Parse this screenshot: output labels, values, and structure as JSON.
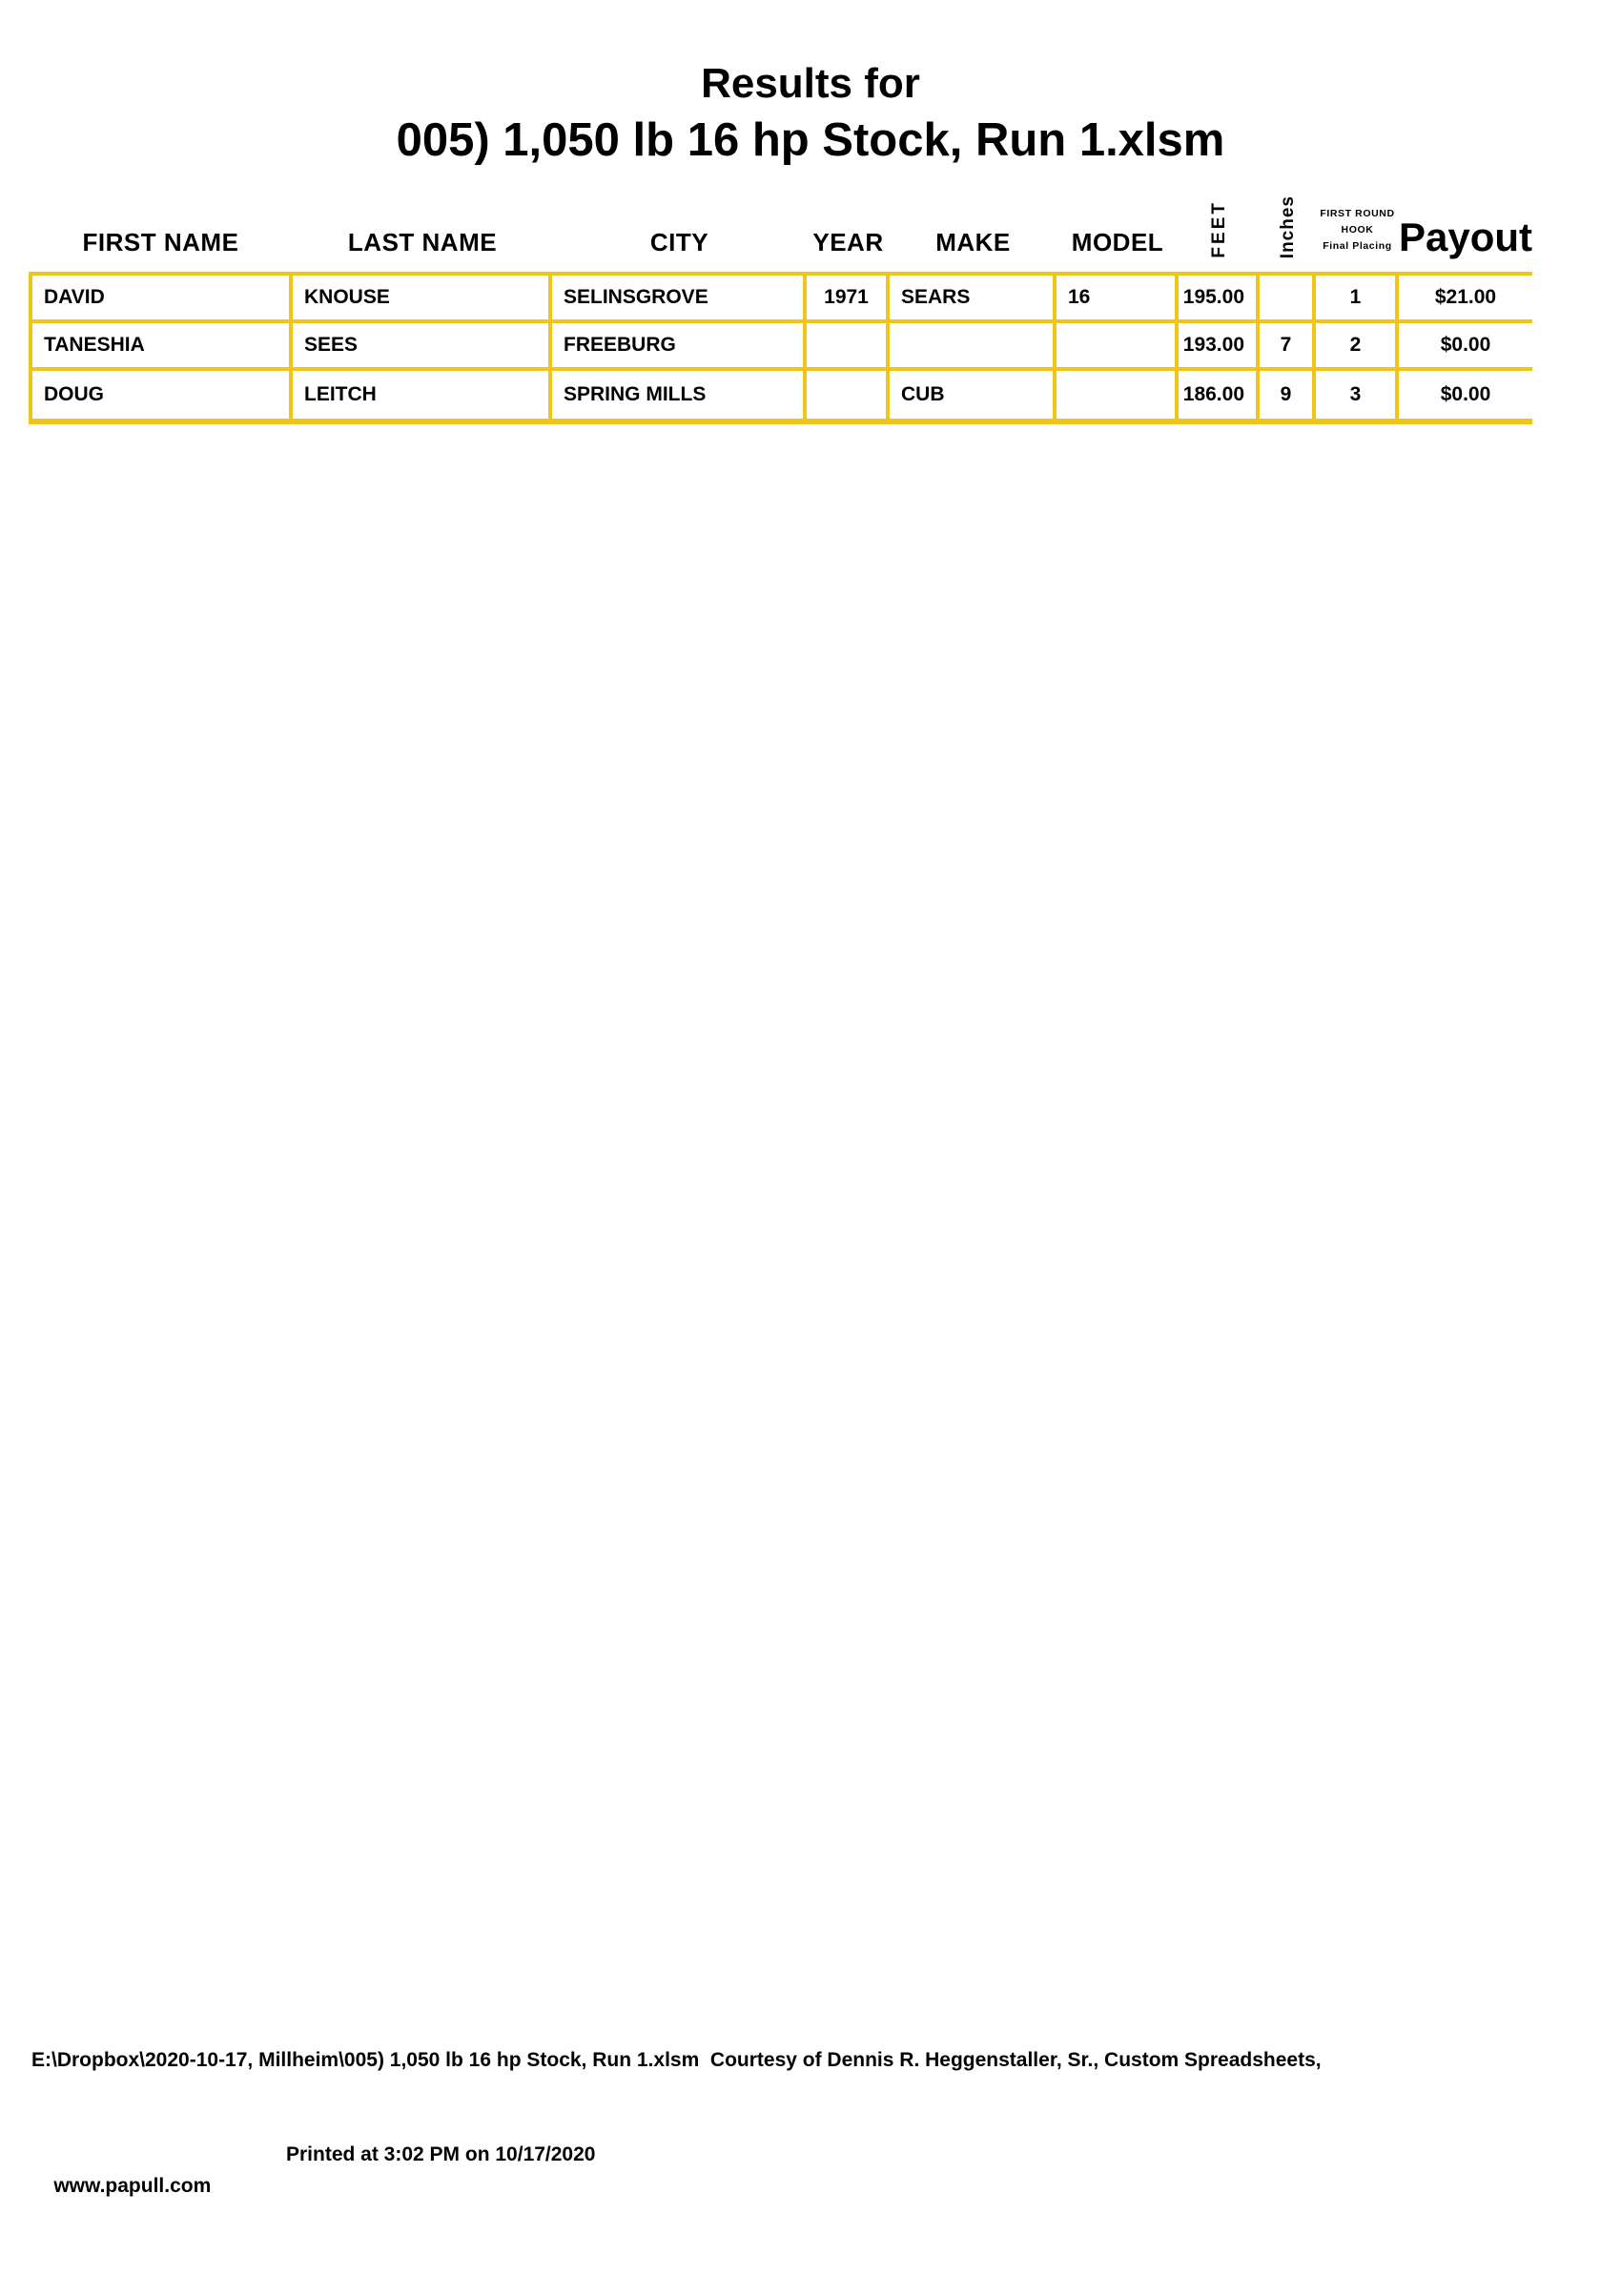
{
  "title": {
    "line1": "Results for",
    "line2": "005) 1,050 lb 16 hp Stock, Run 1.xlsm"
  },
  "colors": {
    "border_gold": "#F0C419",
    "text": "#000000",
    "background": "#FFFFFF"
  },
  "table": {
    "columns": [
      {
        "id": "first_name",
        "label": "FIRST NAME",
        "align": "left"
      },
      {
        "id": "last_name",
        "label": "LAST NAME",
        "align": "left"
      },
      {
        "id": "city",
        "label": "CITY",
        "align": "left"
      },
      {
        "id": "year",
        "label": "YEAR",
        "align": "center"
      },
      {
        "id": "make",
        "label": "MAKE",
        "align": "left"
      },
      {
        "id": "model",
        "label": "MODEL",
        "align": "left"
      },
      {
        "id": "feet",
        "label": "FEET",
        "align": "right",
        "header_style": "rotated"
      },
      {
        "id": "inches",
        "label": "Inches",
        "align": "center",
        "header_style": "rotated"
      },
      {
        "id": "final_placing",
        "label_lines": [
          "FIRST ROUND",
          "HOOK",
          "Final Placing"
        ],
        "align": "center",
        "header_style": "stacked"
      },
      {
        "id": "payout",
        "label": "Payout",
        "align": "center",
        "header_style": "large"
      }
    ],
    "rows": [
      {
        "first_name": "DAVID",
        "last_name": "KNOUSE",
        "city": "SELINSGROVE",
        "year": "1971",
        "make": "SEARS",
        "model": "16",
        "feet": "195.00",
        "inches": "",
        "final_placing": "1",
        "payout": "$21.00"
      },
      {
        "first_name": "TANESHIA",
        "last_name": "SEES",
        "city": "FREEBURG",
        "year": "",
        "make": "",
        "model": "",
        "feet": "193.00",
        "inches": "7",
        "final_placing": "2",
        "payout": "$0.00"
      },
      {
        "first_name": "DOUG",
        "last_name": "LEITCH",
        "city": "SPRING MILLS",
        "year": "",
        "make": "CUB",
        "model": "",
        "feet": "186.00",
        "inches": "9",
        "final_placing": "3",
        "payout": "$0.00"
      }
    ]
  },
  "footer": {
    "line1": "E:\\Dropbox\\2020-10-17, Millheim\\005) 1,050 lb 16 hp Stock, Run 1.xlsm  Courtesy of Dennis R. Heggenstaller, Sr., Custom Spreadsheets,",
    "line2_left": "www.papull.com",
    "line2_right": "Printed at 3:02 PM on 10/17/2020"
  }
}
